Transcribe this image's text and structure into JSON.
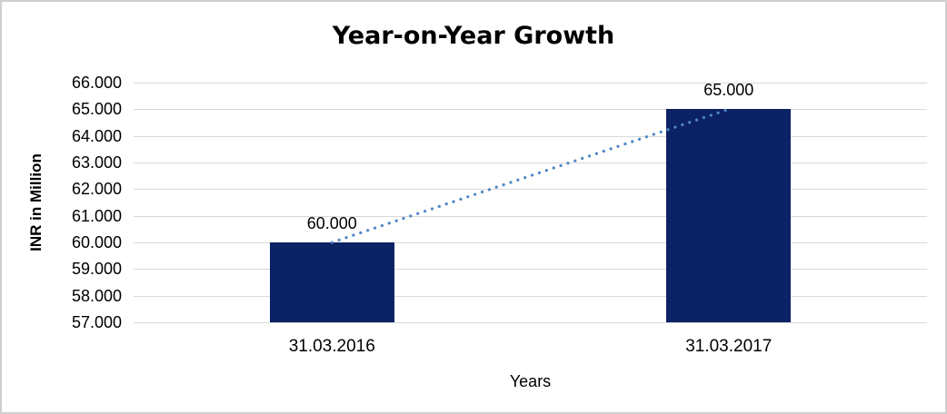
{
  "window": {
    "background": "#ffffff",
    "frame_border_color": "#cfcfcf"
  },
  "chart_data": {
    "type": "bar",
    "title": "Year-on-Year Growth",
    "xlabel": "Years",
    "ylabel": "INR in Million",
    "categories": [
      "31.03.2016",
      "31.03.2017"
    ],
    "values": [
      60000,
      65000
    ],
    "value_labels": [
      "60.000",
      "65.000"
    ],
    "ylim": [
      57000,
      66000
    ],
    "yticks": [
      {
        "label": "66.000",
        "value": 66000
      },
      {
        "label": "65.000",
        "value": 65000
      },
      {
        "label": "64.000",
        "value": 64000
      },
      {
        "label": "63.000",
        "value": 63000
      },
      {
        "label": "62.000",
        "value": 62000
      },
      {
        "label": "61.000",
        "value": 61000
      },
      {
        "label": "60.000",
        "value": 60000
      },
      {
        "label": "59.000",
        "value": 59000
      },
      {
        "label": "58.000",
        "value": 58000
      },
      {
        "label": "57.000",
        "value": 57000
      }
    ],
    "grid": "horizontal",
    "legend": "none",
    "bar_color": "#0b2265",
    "gridline_color": "#d9d9d9",
    "trendline": {
      "style": "dotted",
      "color": "#4f86c6",
      "from_category_index": 0,
      "to_category_index": 1
    }
  }
}
